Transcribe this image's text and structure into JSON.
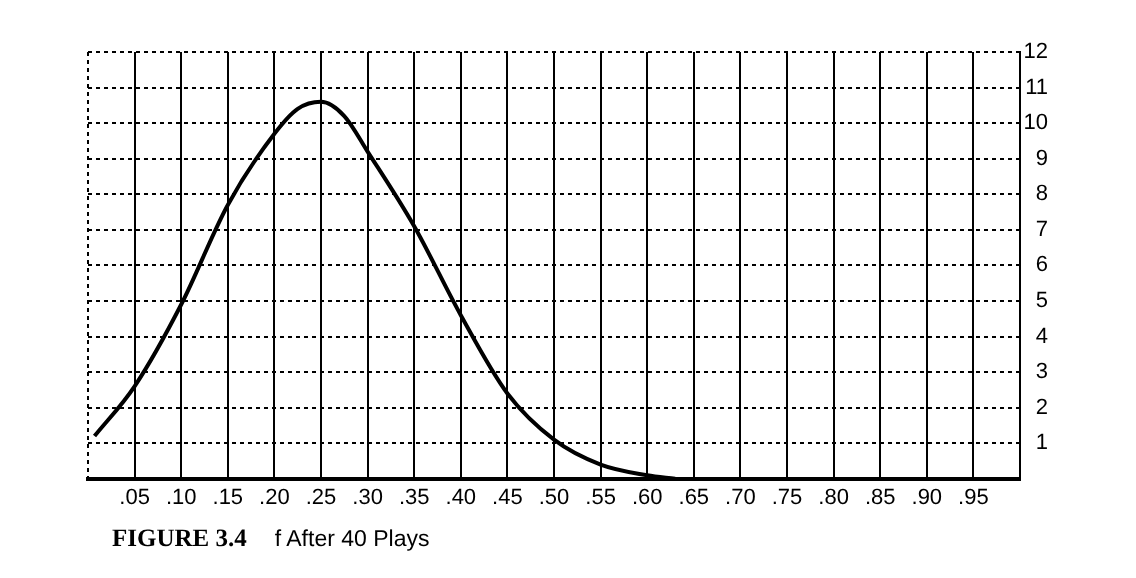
{
  "chart_data": {
    "type": "line",
    "title": "FIGURE 3.4",
    "subtitle": "f After 40 Plays",
    "x": [
      0.007,
      0.05,
      0.1,
      0.15,
      0.2,
      0.225,
      0.25,
      0.275,
      0.3,
      0.35,
      0.4,
      0.45,
      0.5,
      0.55,
      0.6,
      0.63
    ],
    "series": [
      {
        "color": "#000000",
        "values": [
          1.2,
          2.6,
          4.9,
          7.7,
          9.7,
          10.4,
          10.6,
          10.2,
          9.2,
          7.1,
          4.6,
          2.4,
          1.1,
          0.4,
          0.1,
          0
        ]
      }
    ],
    "xlim": [
      0,
      1
    ],
    "ylim": [
      0,
      12
    ],
    "xticks": [
      {
        "value": 0.05,
        "label": ".05"
      },
      {
        "value": 0.1,
        "label": ".10"
      },
      {
        "value": 0.15,
        "label": ".15"
      },
      {
        "value": 0.2,
        "label": ".20"
      },
      {
        "value": 0.25,
        "label": ".25"
      },
      {
        "value": 0.3,
        "label": ".30"
      },
      {
        "value": 0.35,
        "label": ".35"
      },
      {
        "value": 0.4,
        "label": ".40"
      },
      {
        "value": 0.45,
        "label": ".45"
      },
      {
        "value": 0.5,
        "label": ".50"
      },
      {
        "value": 0.55,
        "label": ".55"
      },
      {
        "value": 0.6,
        "label": ".60"
      },
      {
        "value": 0.65,
        "label": ".65"
      },
      {
        "value": 0.7,
        "label": ".70"
      },
      {
        "value": 0.75,
        "label": ".75"
      },
      {
        "value": 0.8,
        "label": ".80"
      },
      {
        "value": 0.85,
        "label": ".85"
      },
      {
        "value": 0.9,
        "label": ".90"
      },
      {
        "value": 0.95,
        "label": ".95"
      }
    ],
    "yticks": [
      1,
      2,
      3,
      4,
      5,
      6,
      7,
      8,
      9,
      10,
      11,
      12
    ],
    "grid": true,
    "legend": false,
    "marker": "none",
    "line_style": "solid"
  }
}
